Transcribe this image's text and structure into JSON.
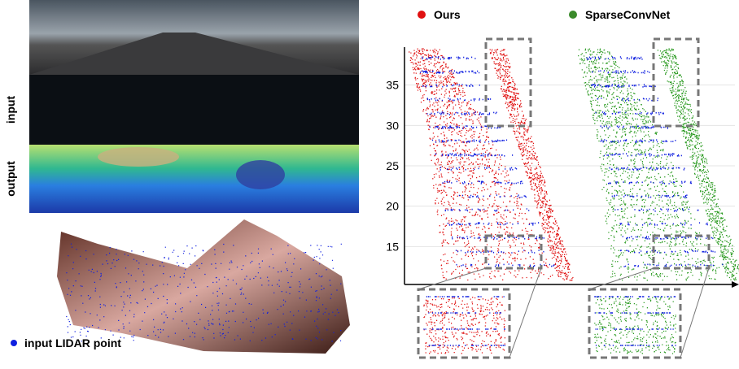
{
  "labels": {
    "input": "input",
    "output": "output",
    "lidar": "input LIDAR point"
  },
  "legend": [
    "Ours",
    "SparseConvNet"
  ],
  "plot": {
    "ylim": [
      10.3,
      39.7
    ],
    "yticks": [
      15,
      20,
      25,
      30,
      35
    ]
  }
}
